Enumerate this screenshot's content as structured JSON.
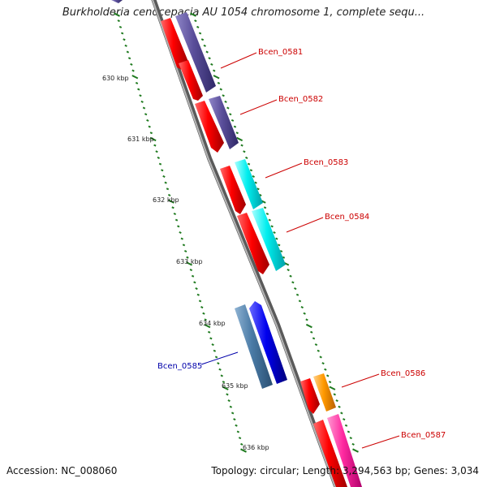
{
  "title": "Burkholderia cenocepacia AU 1054 chromosome 1, complete sequ...",
  "footer": {
    "accession_label": "Accession:",
    "accession": "NC_008060",
    "topology_label": "Topology:",
    "topology": "circular",
    "length_label": "Length:",
    "length": "3,294,563 bp",
    "genes_label": "Genes:",
    "genes": "3,034"
  },
  "colors": {
    "backbone": "#8a8a8a",
    "tick": "#1f7a1f",
    "forward_label": "#cc0000",
    "reverse_label": "#0000aa"
  },
  "kbp_ticks": [
    "630 kbp",
    "631 kbp",
    "632 kbp",
    "633 kbp",
    "634 kbp",
    "635 kbp",
    "636 kbp"
  ],
  "gene_labels": [
    {
      "name": "Bcen_0581",
      "strand": "forward"
    },
    {
      "name": "Bcen_0582",
      "strand": "forward"
    },
    {
      "name": "Bcen_0583",
      "strand": "forward"
    },
    {
      "name": "Bcen_0584",
      "strand": "forward"
    },
    {
      "name": "Bcen_0585",
      "strand": "reverse"
    },
    {
      "name": "Bcen_0586",
      "strand": "forward"
    },
    {
      "name": "Bcen_0587",
      "strand": "forward"
    }
  ]
}
